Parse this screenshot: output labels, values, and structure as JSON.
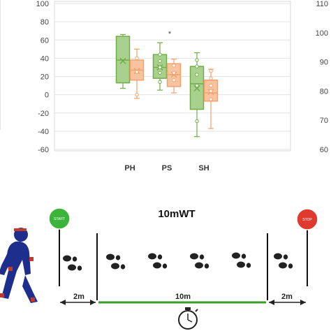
{
  "chart_data": {
    "type": "box",
    "categories": [
      "PH",
      "PS",
      "SH"
    ],
    "ylim": [
      -60,
      100
    ],
    "left_ticks": [
      "100",
      "80",
      "60",
      "40",
      "20",
      "0",
      "-20",
      "-40",
      "-60"
    ],
    "right_ticks": [
      "110",
      "100",
      "90",
      "80",
      "70",
      "60"
    ],
    "annotation": "*",
    "series": [
      {
        "color": "#70ad47",
        "boxes": [
          {
            "min": 7,
            "q1": 13,
            "median": 38,
            "q3": 64,
            "max": 66,
            "mean": 37,
            "points": []
          },
          {
            "min": 5,
            "q1": 18,
            "median": 30,
            "q3": 44,
            "max": 57,
            "mean": 30,
            "points": [
              14,
              24,
              30,
              37,
              44
            ]
          },
          {
            "min": -46,
            "q1": -16,
            "median": 12,
            "q3": 31,
            "max": 46,
            "mean": 7,
            "points": [
              -29,
              10,
              22,
              31,
              38
            ]
          }
        ]
      },
      {
        "color": "#f4a06b",
        "boxes": [
          {
            "min": -4,
            "q1": 16,
            "median": 27,
            "q3": 38,
            "max": 50,
            "mean": 26,
            "points": [
              0,
              25,
              40
            ]
          },
          {
            "min": 2,
            "q1": 9,
            "median": 22,
            "q3": 34,
            "max": 39,
            "mean": 22,
            "points": [
              16,
              24,
              32
            ]
          },
          {
            "min": -37,
            "q1": -7,
            "median": 2,
            "q3": 16,
            "max": 28,
            "mean": 3,
            "points": [
              -5,
              4,
              10,
              18,
              26
            ]
          }
        ]
      }
    ]
  },
  "diagram": {
    "title": "10mWT",
    "start_label": "START",
    "stop_label": "STOP",
    "left_distance": "2m",
    "middle_distance": "10m",
    "right_distance": "2m",
    "colors": {
      "start_sign": "#3cb43c",
      "stop_sign": "#e03a2f",
      "walk_line": "#3a9a2a",
      "walker": "#1e2e8c"
    },
    "icons": [
      "walker-icon",
      "footprints-icon",
      "stopwatch-icon",
      "start-sign-icon",
      "stop-sign-icon"
    ]
  }
}
